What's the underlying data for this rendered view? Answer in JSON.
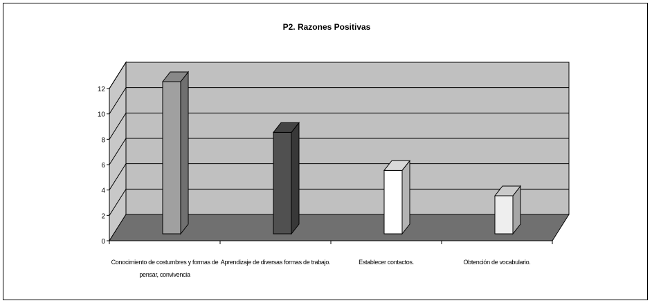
{
  "chart_data": {
    "type": "bar",
    "title": "P2. Razones Positivas",
    "xlabel": "",
    "ylabel": "",
    "categories": [
      [
        "Conocimiento de costumbres y formas de",
        "pensar, convivencia"
      ],
      [
        "Aprendizaje de diversas formas de trabajo."
      ],
      [
        "Establecer contactos."
      ],
      [
        "Obtención de vocabulario."
      ]
    ],
    "values": [
      12,
      8,
      5,
      3
    ],
    "ylim": [
      0,
      12
    ],
    "yticks": [
      0,
      2,
      4,
      6,
      8,
      10,
      12
    ],
    "grid": true,
    "legend": "none",
    "style": "3d-column",
    "colors": {
      "bars": [
        "#a0a0a0",
        "#505050",
        "#ffffff",
        "#eeeeee"
      ],
      "back_wall": "#c0c0c0",
      "floor": "#707070",
      "left_wall": "#c8c8c8",
      "gridline": "#000000"
    }
  }
}
